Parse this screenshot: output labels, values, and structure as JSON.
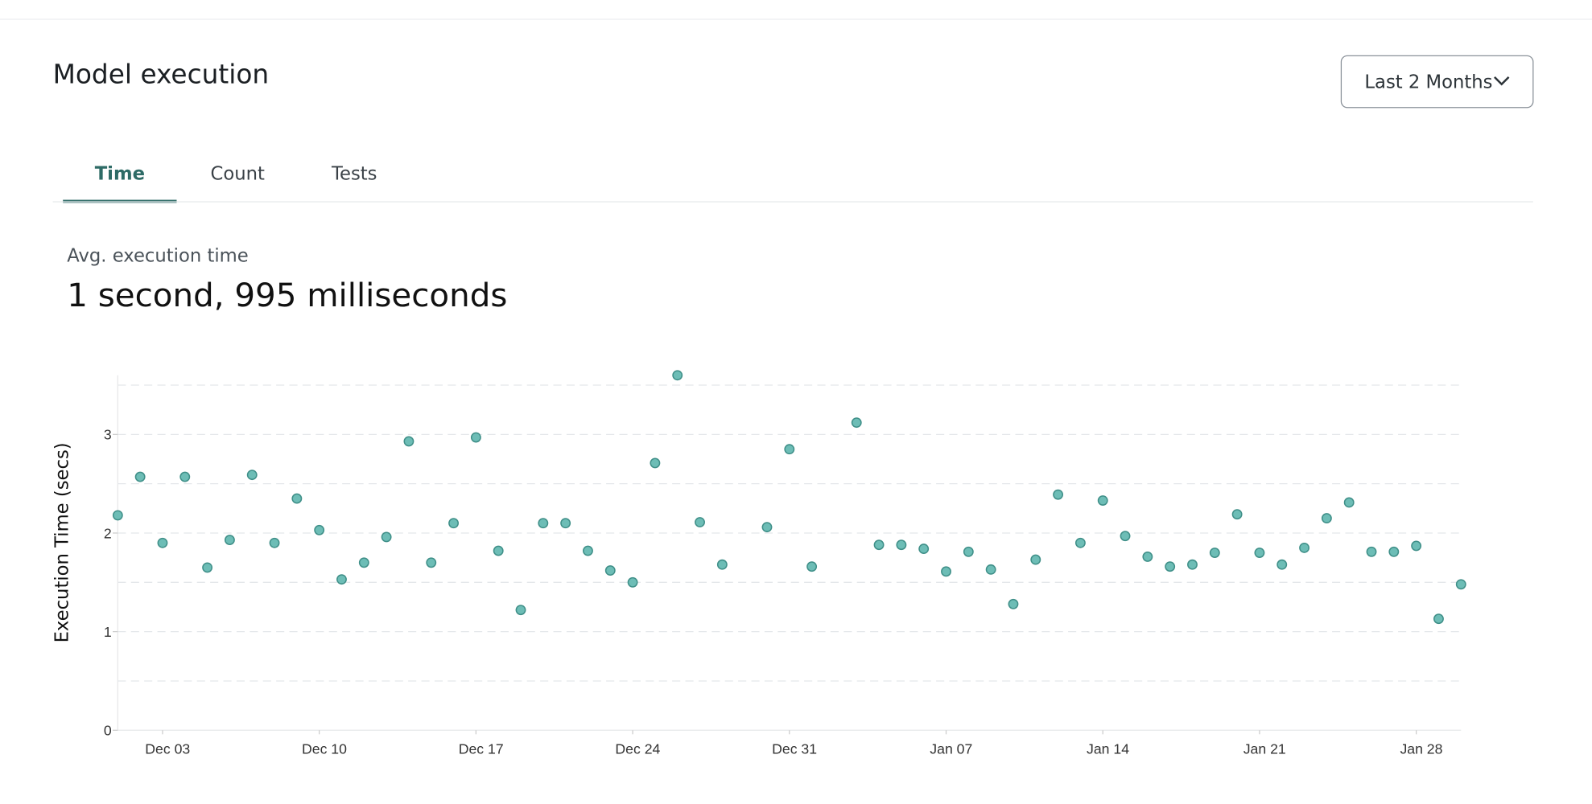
{
  "header": {
    "title": "Model execution",
    "range_button": "Last 2 Months"
  },
  "tabs": {
    "items": [
      "Time",
      "Count",
      "Tests"
    ],
    "active": 0
  },
  "summary": {
    "label": "Avg. execution time",
    "value": "1 second, 995 milliseconds"
  },
  "chart_data": {
    "type": "scatter",
    "ylabel": "Execution Time (secs)",
    "color": "#6dbdb6",
    "edge_color": "#3f8f88",
    "x": [
      "Dec 01",
      "Dec 02",
      "Dec 03",
      "Dec 04",
      "Dec 05",
      "Dec 06",
      "Dec 07",
      "Dec 08",
      "Dec 09",
      "Dec 10",
      "Dec 11",
      "Dec 12",
      "Dec 13",
      "Dec 14",
      "Dec 15",
      "Dec 16",
      "Dec 17",
      "Dec 18",
      "Dec 19",
      "Dec 20",
      "Dec 21",
      "Dec 22",
      "Dec 23",
      "Dec 24",
      "Dec 25",
      "Dec 26",
      "Dec 27",
      "Dec 28",
      "Dec 29",
      "Dec 30",
      "Dec 31",
      "Jan 01",
      "Jan 02",
      "Jan 03",
      "Jan 04",
      "Jan 05",
      "Jan 06",
      "Jan 07",
      "Jan 08",
      "Jan 09",
      "Jan 10",
      "Jan 11",
      "Jan 12",
      "Jan 13",
      "Jan 14",
      "Jan 15",
      "Jan 16",
      "Jan 17",
      "Jan 18",
      "Jan 19",
      "Jan 20",
      "Jan 21",
      "Jan 22",
      "Jan 23",
      "Jan 24",
      "Jan 25",
      "Jan 26",
      "Jan 27",
      "Jan 28",
      "Jan 29",
      "Jan 30"
    ],
    "values": [
      2.18,
      2.57,
      1.9,
      2.57,
      1.65,
      1.93,
      2.59,
      1.9,
      2.35,
      2.03,
      1.53,
      1.7,
      1.96,
      2.93,
      1.7,
      2.1,
      2.97,
      1.82,
      1.22,
      2.1,
      2.1,
      1.82,
      1.62,
      1.5,
      2.71,
      3.6,
      2.11,
      1.68,
      null,
      2.06,
      2.85,
      1.66,
      null,
      3.12,
      1.88,
      1.88,
      1.84,
      1.61,
      1.81,
      1.63,
      1.28,
      1.73,
      2.39,
      1.9,
      2.33,
      1.97,
      1.76,
      1.66,
      1.68,
      1.8,
      2.19,
      1.8,
      1.68,
      1.85,
      2.15,
      2.31,
      1.81,
      1.81,
      1.87,
      1.13,
      1.48
    ],
    "xlim": [
      "Dec 01",
      "Jan 30"
    ],
    "xticks": [
      "Dec 03",
      "Dec 10",
      "Dec 17",
      "Dec 24",
      "Dec 31",
      "Jan 07",
      "Jan 14",
      "Jan 21",
      "Jan 28"
    ],
    "ylim": [
      0,
      3.6
    ],
    "yticks": [
      0,
      1,
      2,
      3
    ],
    "gridlines": [
      0.5,
      1,
      1.5,
      2,
      2.5,
      3,
      3.5
    ],
    "grid": true
  }
}
